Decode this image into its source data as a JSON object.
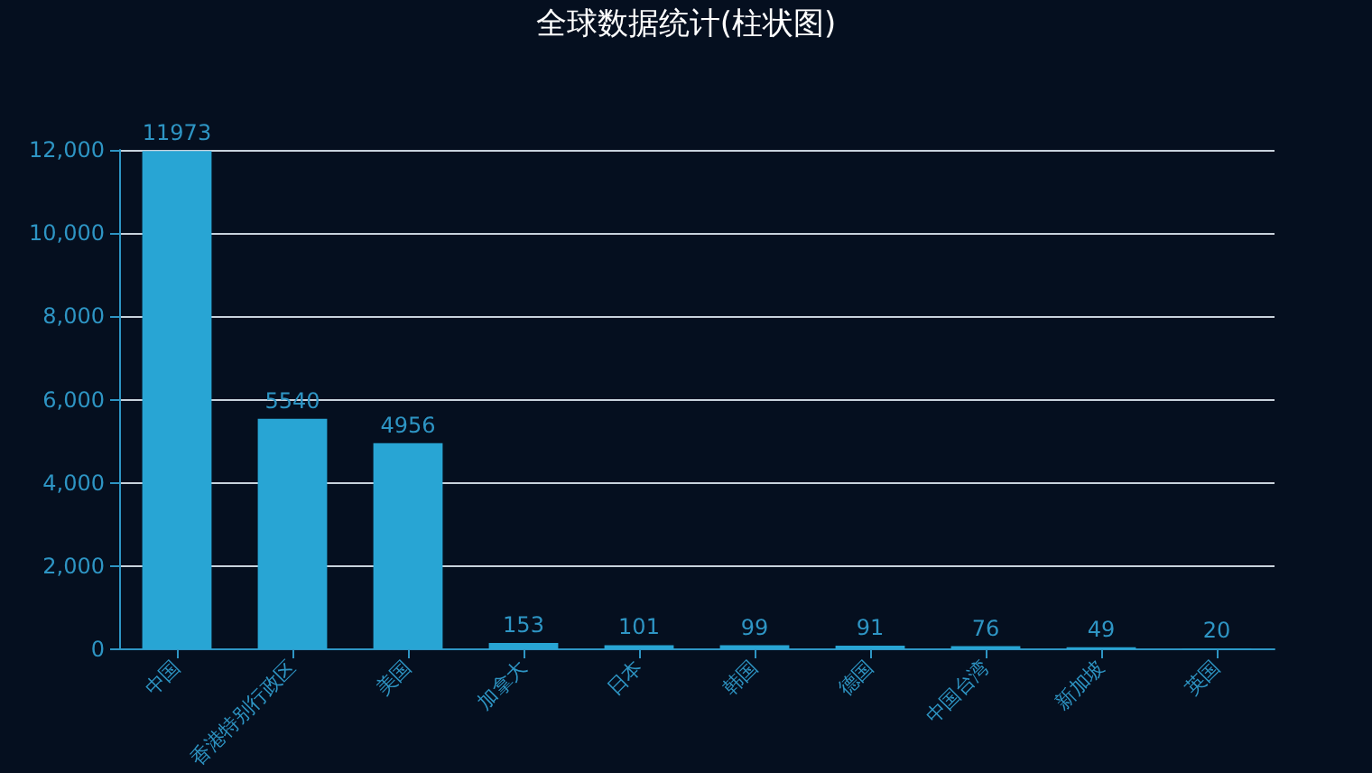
{
  "chart_data": {
    "type": "bar",
    "title": "全球数据统计(柱状图)",
    "categories": [
      "中国",
      "香港特别行政区",
      "美国",
      "加拿大",
      "日本",
      "韩国",
      "德国",
      "中国台湾",
      "新加坡",
      "英国"
    ],
    "values": [
      11973,
      5540,
      4956,
      153,
      101,
      99,
      91,
      76,
      49,
      20
    ],
    "color": "#28a5d4",
    "ylim": [
      0,
      12000
    ],
    "yticks": [
      0,
      {
        "value": 2000,
        "label": "2,000"
      },
      {
        "value": 4000,
        "label": "4,000"
      },
      {
        "value": 6000,
        "label": "6,000"
      },
      {
        "value": 8000,
        "label": "8,000"
      },
      {
        "value": 10000,
        "label": "10,000"
      },
      {
        "value": 12000,
        "label": "12,000"
      }
    ],
    "grid": "y",
    "data_labels": true
  }
}
